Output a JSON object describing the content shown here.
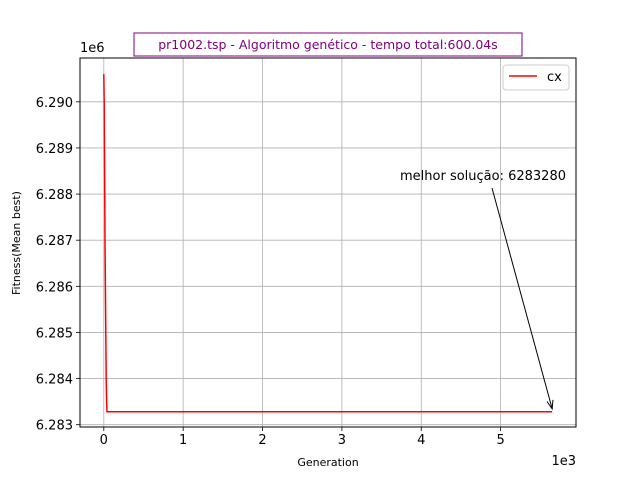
{
  "chart_data": {
    "type": "line",
    "title": "pr1002.tsp - Algoritmo genético - tempo total:600.04s",
    "xlabel": "Generation",
    "ylabel": "Fitness(Mean best)",
    "x_offset_text": "1e3",
    "y_offset_text": "1e6",
    "xlim": [
      -300,
      5950
    ],
    "ylim": [
      6282950,
      6290950
    ],
    "x_ticks": [
      0,
      1000,
      2000,
      3000,
      4000,
      5000
    ],
    "x_tick_labels": [
      "0",
      "1",
      "2",
      "3",
      "4",
      "5"
    ],
    "y_ticks": [
      6283000,
      6284000,
      6285000,
      6286000,
      6287000,
      6288000,
      6289000,
      6290000
    ],
    "y_tick_labels": [
      "6.283",
      "6.284",
      "6.285",
      "6.286",
      "6.287",
      "6.288",
      "6.289",
      "6.290"
    ],
    "grid": true,
    "legend": {
      "position": "top-right"
    },
    "series": [
      {
        "name": "cx",
        "color": "#ff0000",
        "x": [
          0,
          0,
          5,
          10,
          15,
          20,
          25,
          30,
          35,
          40,
          5650
        ],
        "y": [
          6290600,
          6290580,
          6290000,
          6288500,
          6287000,
          6286000,
          6285000,
          6284000,
          6283550,
          6283280,
          6283280
        ]
      }
    ],
    "annotation": {
      "text": "melhor solução: 6283280",
      "point": [
        5650,
        6283300
      ]
    },
    "title_color": "#800080"
  }
}
